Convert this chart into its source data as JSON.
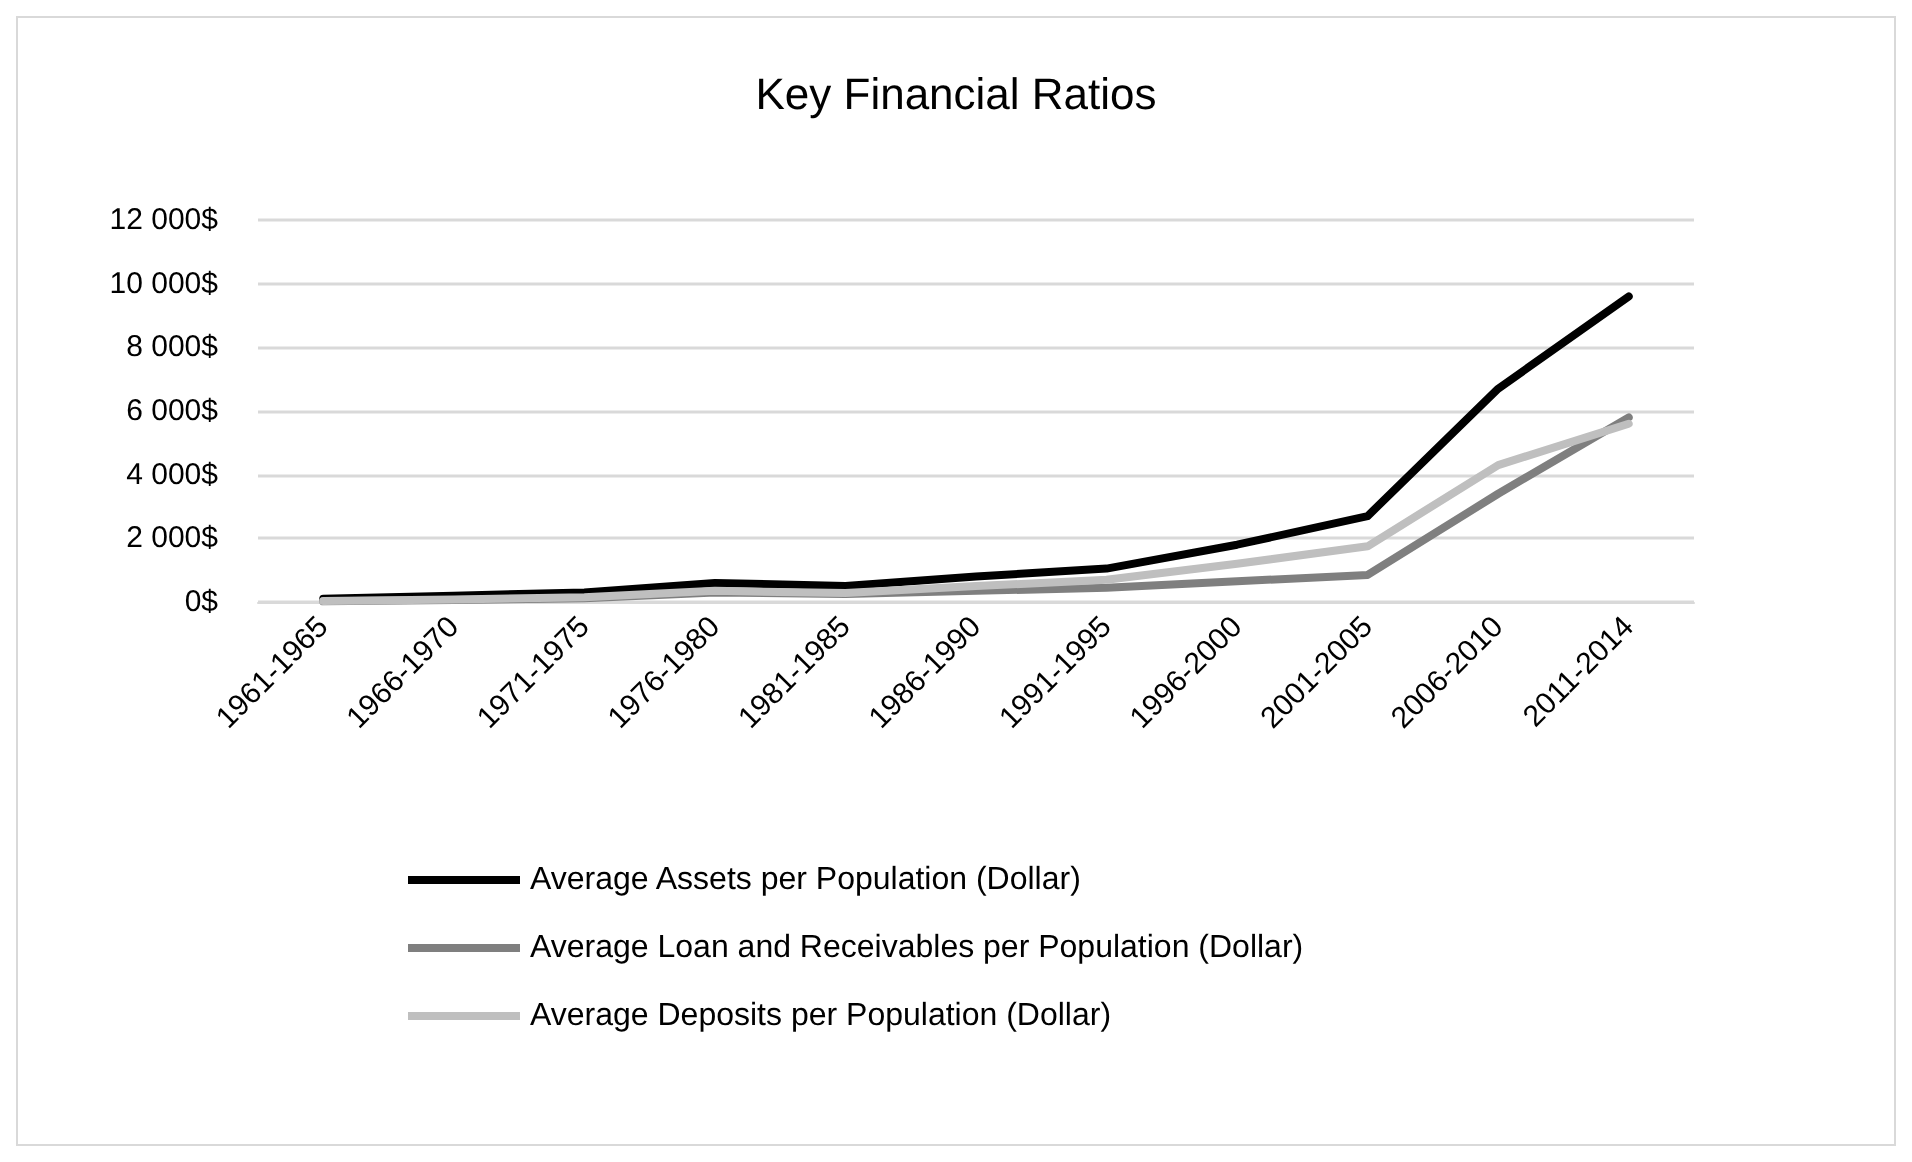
{
  "chart_data": {
    "type": "line",
    "title": "Key Financial Ratios",
    "categories": [
      "1961-1965",
      "1966-1970",
      "1971-1975",
      "1976-1980",
      "1981-1985",
      "1986-1990",
      "1991-1995",
      "1996-2000",
      "2001-2005",
      "2006-2010",
      "2011-2014"
    ],
    "series": [
      {
        "name": "Average Assets per Population (Dollar)",
        "color": "#000000",
        "values": [
          100,
          200,
          300,
          600,
          500,
          800,
          1050,
          1800,
          2700,
          6700,
          9600
        ]
      },
      {
        "name": "Average Loan and Receivables per Population (Dollar)",
        "color": "#7f7f7f",
        "values": [
          20,
          60,
          120,
          300,
          250,
          350,
          450,
          650,
          850,
          3400,
          5800
        ]
      },
      {
        "name": "Average Deposits per Population (Dollar)",
        "color": "#bfbfbf",
        "values": [
          30,
          80,
          150,
          350,
          280,
          500,
          700,
          1200,
          1750,
          4300,
          5600
        ]
      }
    ],
    "ylim": [
      0,
      12000
    ],
    "yticks": [
      {
        "value": 0,
        "label": "0$"
      },
      {
        "value": 2000,
        "label": "2 000$"
      },
      {
        "value": 4000,
        "label": "4 000$"
      },
      {
        "value": 6000,
        "label": "6 000$"
      },
      {
        "value": 8000,
        "label": "8 000$"
      },
      {
        "value": 10000,
        "label": "10 000$"
      },
      {
        "value": 12000,
        "label": "12 000$"
      }
    ],
    "grid": "y",
    "legend": "bottom",
    "marker": "none",
    "line_style": "solid"
  }
}
